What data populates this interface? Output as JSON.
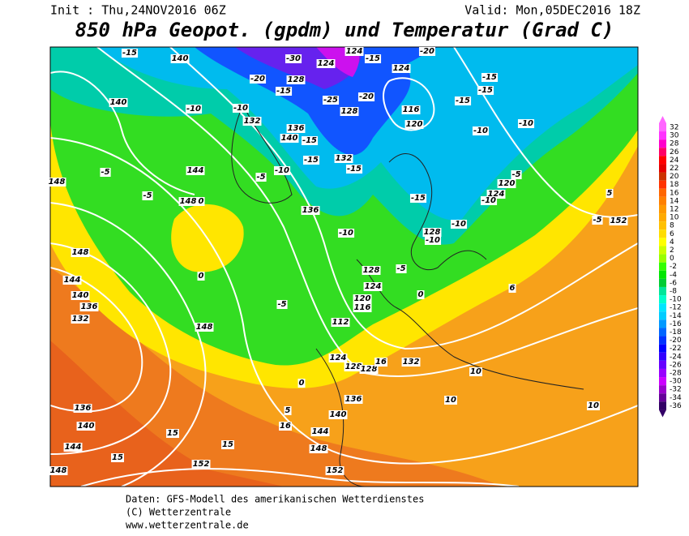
{
  "header": {
    "init": "Init : Thu,24NOV2016 06Z",
    "valid": "Valid: Mon,05DEC2016 18Z",
    "title": "850 hPa Geopot. (gpdm) und Temperatur (Grad C)"
  },
  "colorbar": {
    "levels": [
      32,
      30,
      28,
      26,
      24,
      22,
      20,
      18,
      16,
      14,
      12,
      10,
      8,
      6,
      4,
      2,
      0,
      -2,
      -4,
      -6,
      -8,
      -10,
      -12,
      -14,
      -16,
      -18,
      -20,
      -22,
      -24,
      -26,
      -28,
      -30,
      -32,
      -34,
      -36
    ],
    "colors": [
      "#ff66ff",
      "#ff33ff",
      "#ff00cc",
      "#ff0066",
      "#ff0000",
      "#e60000",
      "#cc3300",
      "#ff3300",
      "#ff6600",
      "#ff8000",
      "#ff9900",
      "#ffaa00",
      "#ffc000",
      "#ffdd00",
      "#ffff00",
      "#ccff00",
      "#99ff00",
      "#33ff00",
      "#00e600",
      "#00cc33",
      "#00e699",
      "#00ffcc",
      "#00e6ff",
      "#00ccff",
      "#0099ff",
      "#0066ff",
      "#0033ff",
      "#0000ff",
      "#3300ff",
      "#6600ff",
      "#9900ff",
      "#cc00ff",
      "#9900cc",
      "#660099",
      "#330066"
    ]
  },
  "map": {
    "labels": [
      -15,
      140,
      -30,
      124,
      124,
      -15,
      -20,
      124,
      -15,
      -15,
      -20,
      128,
      -15,
      -25,
      -20,
      116,
      -15,
      140,
      -10,
      -10,
      128,
      132,
      120,
      -10,
      -10,
      136,
      140,
      -15,
      -5,
      144,
      -5,
      -10,
      -15,
      132,
      -15,
      -5,
      120,
      148,
      -5,
      148,
      0,
      124,
      -10,
      -15,
      5,
      -5,
      152,
      136,
      -10,
      -10,
      128,
      -10,
      148,
      -5,
      128,
      0,
      6,
      144,
      124,
      0,
      140,
      136,
      120,
      116,
      -5,
      132,
      112,
      148,
      124,
      128,
      128,
      16,
      132,
      10,
      0,
      136,
      10,
      5,
      140,
      10,
      136,
      140,
      16,
      144,
      15,
      144,
      15,
      148,
      15,
      152,
      148,
      152
    ]
  },
  "footer": {
    "source": "Daten: GFS-Modell des amerikanischen Wetterdienstes",
    "copyright": "(C) Wetterzentrale",
    "url": "www.wetterzentrale.de"
  }
}
